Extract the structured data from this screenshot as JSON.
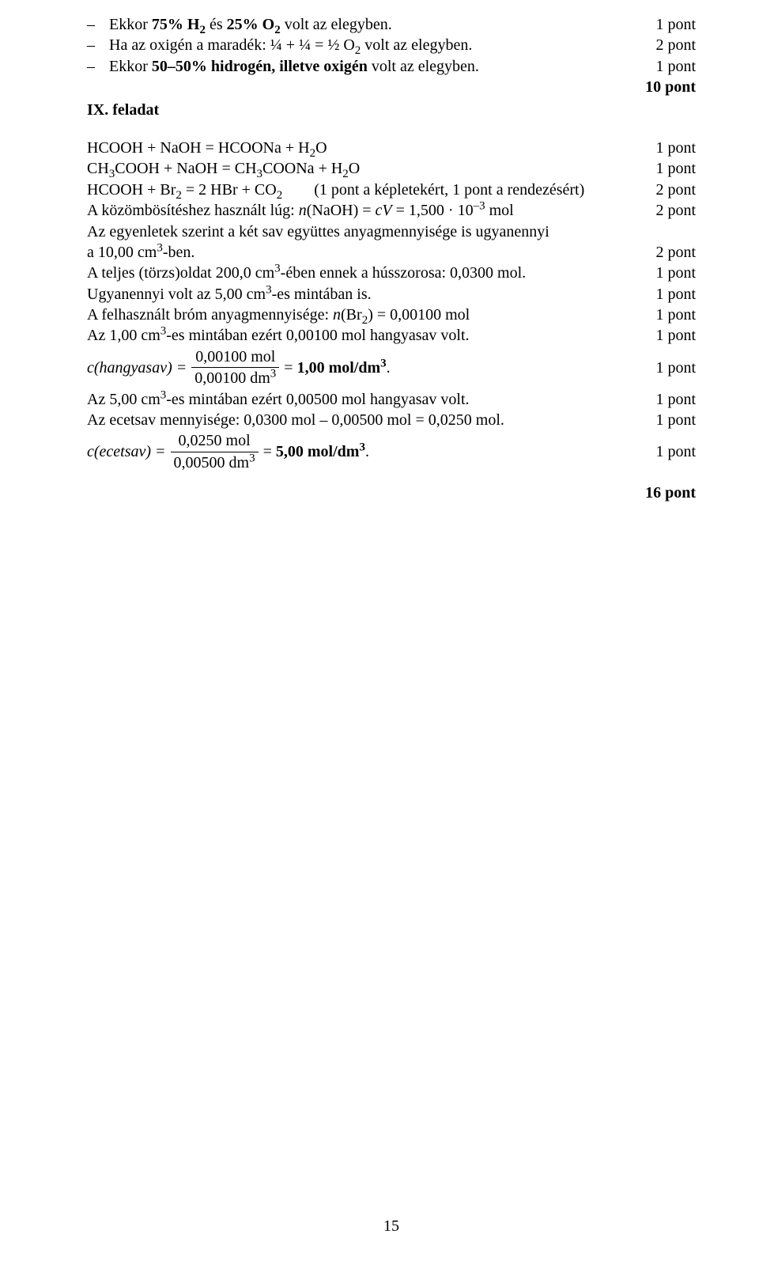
{
  "top": {
    "items": [
      {
        "text_html": "Ekkor <b>75% H<sub>2</sub></b> és <b>25% O<sub>2</sub></b> volt az elegyben.",
        "pts": "1 pont"
      },
      {
        "text_html": "Ha az oxigén a maradék: ¼ + ¼ = ½ O<sub>2</sub> volt az elegyben.",
        "pts": "2 pont"
      },
      {
        "text_html": "Ekkor <b>50–50% hidrogén, illetve oxigén</b> volt az elegyben.",
        "pts": "1 pont"
      }
    ],
    "total": "10 pont"
  },
  "section_label": "IX. feladat",
  "lines": [
    {
      "text_html": "HCOOH + NaOH = HCOONa + H<sub>2</sub>O",
      "pts": "1 pont"
    },
    {
      "text_html": "CH<sub>3</sub>COOH + NaOH = CH<sub>3</sub>COONa + H<sub>2</sub>O",
      "pts": "1 pont"
    },
    {
      "text_html": "HCOOH + Br<sub>2</sub> = 2 HBr + CO<sub>2</sub>&nbsp;&nbsp;&nbsp;&nbsp;&nbsp;&nbsp;&nbsp;&nbsp;(1 pont a képletekért, 1 pont a rendezésért)",
      "pts": "2 pont"
    },
    {
      "text_html": "A közömbösítéshez használt lúg: <i>n</i>(NaOH) = <i>cV</i> = 1,500 · 10<sup>–3</sup> mol",
      "pts": "2 pont"
    },
    {
      "text_html": "Az egyenletek szerint a két sav együttes anyagmennyisége is ugyanennyi<br>a 10,00 cm<sup>3</sup>-ben.",
      "pts": "2 pont"
    },
    {
      "text_html": "A teljes (törzs)oldat 200,0 cm<sup>3</sup>-ében ennek a hússzorosa: 0,0300 mol.",
      "pts": "1 pont"
    },
    {
      "text_html": "Ugyanennyi volt az 5,00 cm<sup>3</sup>-es mintában is.",
      "pts": "1 pont"
    },
    {
      "text_html": "A felhasznált bróm anyagmennyisége: <i>n</i>(Br<sub>2</sub>) = 0,00100 mol",
      "pts": "1 pont"
    },
    {
      "text_html": "Az 1,00 cm<sup>3</sup>-es mintában ezért 0,00100 mol hangyasav volt.",
      "pts": "1 pont"
    }
  ],
  "frac1": {
    "lhs": "c(hangyasav) = ",
    "num": "0,00100 mol",
    "den_html": "0,00100 dm<sup>3</sup>",
    "rhs_html": " = <b>1,00 mol/dm<sup>3</sup></b>.",
    "pts": "1 pont"
  },
  "lines2": [
    {
      "text_html": "Az 5,00 cm<sup>3</sup>-es mintában ezért 0,00500 mol hangyasav volt.",
      "pts": "1 pont"
    },
    {
      "text_html": "Az ecetsav mennyisége: 0,0300 mol – 0,00500 mol = 0,0250 mol.",
      "pts": "1 pont"
    }
  ],
  "frac2": {
    "lhs": "c(ecetsav) = ",
    "num": "0,0250 mol",
    "den_html": "0,00500 dm<sup>3</sup>",
    "rhs_html": " =  <b>5,00 mol/dm<sup>3</sup></b>.",
    "pts": "1 pont"
  },
  "final_total": "16 pont",
  "page_number": "15"
}
